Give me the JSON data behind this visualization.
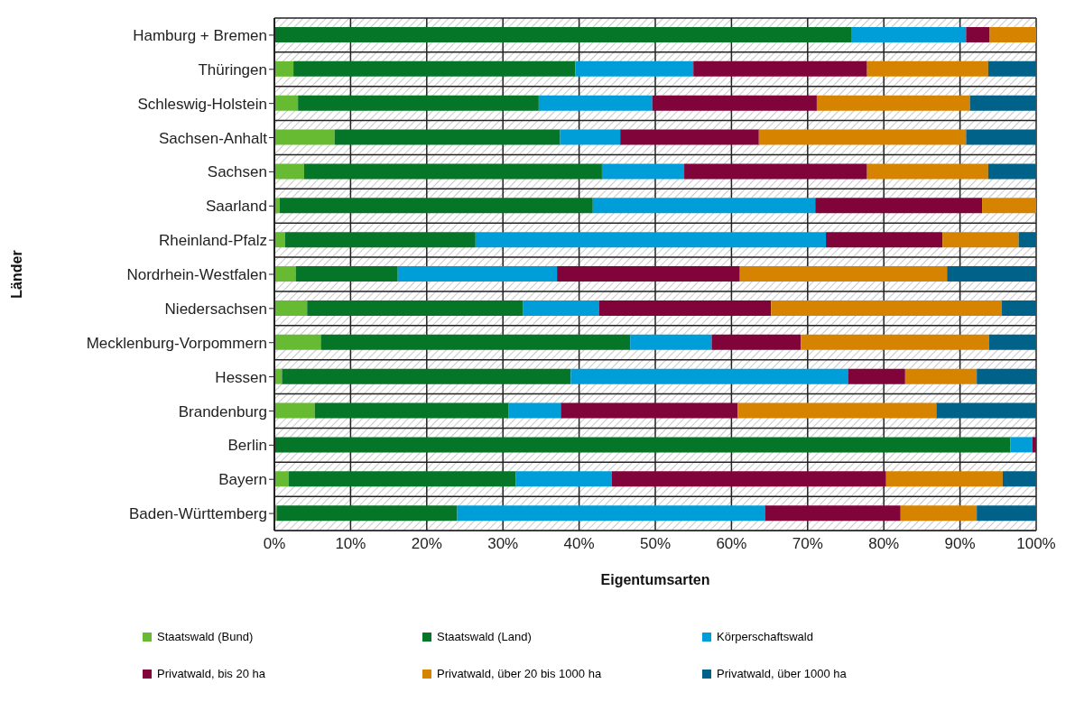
{
  "chart_data": {
    "type": "bar",
    "orientation": "horizontal",
    "stacked": true,
    "xlabel": "Eigentumsarten",
    "ylabel": "Länder",
    "categories": [
      "Hamburg + Bremen",
      "Thüringen",
      "Schleswig-Holstein",
      "Sachsen-Anhalt",
      "Sachsen",
      "Saarland",
      "Rheinland-Pfalz",
      "Nordrhein-Westfalen",
      "Niedersachsen",
      "Mecklenburg-Vorpommern",
      "Hessen",
      "Brandenburg",
      "Berlin",
      "Bayern",
      "Baden-Württemberg"
    ],
    "series": [
      {
        "name": "Staatswald (Bund)",
        "color": "#66bb33",
        "values": [
          0,
          2.5,
          3.1,
          7.9,
          3.9,
          0.7,
          1.4,
          2.8,
          4.3,
          6.1,
          1.0,
          5.3,
          0,
          1.9,
          0.3
        ]
      },
      {
        "name": "Staatswald (Land)",
        "color": "#057528",
        "values": [
          75.8,
          37.0,
          31.6,
          29.6,
          39.1,
          41.1,
          25.0,
          13.4,
          28.3,
          40.6,
          37.9,
          25.4,
          96.6,
          29.8,
          23.7
        ]
      },
      {
        "name": "Körperschaftswald",
        "color": "#009ed8",
        "values": [
          15.0,
          15.5,
          14.9,
          7.9,
          10.8,
          29.2,
          46.0,
          20.9,
          10.0,
          10.7,
          36.4,
          6.9,
          2.9,
          12.6,
          40.4
        ]
      },
      {
        "name": "Privatwald, bis 20 ha",
        "color": "#80033a",
        "values": [
          3.1,
          22.8,
          21.6,
          18.2,
          24.0,
          21.9,
          15.3,
          24.0,
          22.6,
          11.7,
          7.5,
          23.2,
          0.5,
          36.0,
          17.8
        ]
      },
      {
        "name": "Privatwald, über 20 bis 1000 ha",
        "color": "#d68400",
        "values": [
          6.1,
          15.9,
          20.1,
          27.2,
          15.9,
          7.1,
          10.0,
          27.2,
          30.3,
          24.7,
          9.4,
          26.1,
          0,
          15.3,
          10.0
        ]
      },
      {
        "name": "Privatwald, über 1000 ha",
        "color": "#006288",
        "values": [
          0,
          6.3,
          8.7,
          9.2,
          6.3,
          0,
          2.3,
          11.7,
          4.5,
          6.2,
          7.8,
          13.1,
          0,
          4.4,
          7.8
        ]
      }
    ],
    "xlim": [
      0,
      100
    ],
    "xticks": [
      {
        "value": 0,
        "label": "0%"
      },
      {
        "value": 10,
        "label": "10%"
      },
      {
        "value": 20,
        "label": "20%"
      },
      {
        "value": 30,
        "label": "30%"
      },
      {
        "value": 40,
        "label": "40%"
      },
      {
        "value": 50,
        "label": "50%"
      },
      {
        "value": 60,
        "label": "60%"
      },
      {
        "value": 70,
        "label": "70%"
      },
      {
        "value": 80,
        "label": "80%"
      },
      {
        "value": 90,
        "label": "90%"
      },
      {
        "value": 100,
        "label": "100%"
      }
    ],
    "grid": true,
    "legend": "bottom"
  }
}
